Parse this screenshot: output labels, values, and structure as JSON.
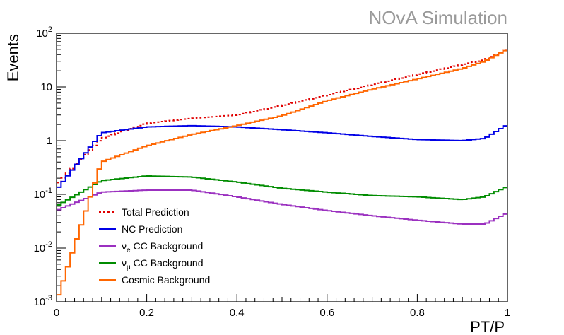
{
  "watermark": "NOvA Simulation",
  "chart_data": {
    "type": "line",
    "style": "step-histogram",
    "xlabel": "PT/P",
    "ylabel": "Events",
    "xlim": [
      0,
      1
    ],
    "ylim": [
      0.001,
      100
    ],
    "yscale": "log",
    "grid": false,
    "legend_position": "bottom-left",
    "x_ticks": [
      "0",
      "0.2",
      "0.4",
      "0.6",
      "0.8",
      "1"
    ],
    "y_ticks": [
      {
        "value": 0.001,
        "base": "10",
        "exp": "-3"
      },
      {
        "value": 0.01,
        "base": "10",
        "exp": "-2"
      },
      {
        "value": 0.1,
        "base": "10",
        "exp": "-1"
      },
      {
        "value": 1,
        "base": "1",
        "exp": ""
      },
      {
        "value": 10,
        "base": "10",
        "exp": ""
      },
      {
        "value": 100,
        "base": "10",
        "exp": "2"
      }
    ],
    "x": [
      0.0,
      0.1,
      0.2,
      0.3,
      0.4,
      0.5,
      0.6,
      0.7,
      0.8,
      0.9,
      0.95,
      1.0
    ],
    "series": [
      {
        "name": "Total Prediction",
        "color": "#e00000",
        "dash": true,
        "legend": {
          "text": "Total Prediction"
        },
        "values": [
          0.15,
          1.1,
          2.1,
          2.6,
          3.0,
          4.5,
          7.0,
          11.0,
          17.0,
          26.0,
          32.0,
          50.0
        ]
      },
      {
        "name": "NC Prediction",
        "color": "#0000e6",
        "legend": {
          "text": "NC Prediction"
        },
        "values": [
          0.12,
          1.4,
          1.8,
          1.9,
          1.8,
          1.6,
          1.4,
          1.2,
          1.05,
          1.0,
          1.1,
          2.0
        ]
      },
      {
        "name": "nu_e CC Background",
        "color": "#9b30c0",
        "legend": {
          "base": "ν",
          "sub": "e",
          "rest": " CC Background"
        },
        "values": [
          0.05,
          0.11,
          0.12,
          0.12,
          0.09,
          0.065,
          0.05,
          0.04,
          0.033,
          0.028,
          0.028,
          0.045
        ]
      },
      {
        "name": "nu_mu CC Background",
        "color": "#008c00",
        "legend": {
          "base": "ν",
          "sub": "μ",
          "rest": " CC Background"
        },
        "values": [
          0.06,
          0.18,
          0.22,
          0.21,
          0.17,
          0.13,
          0.11,
          0.095,
          0.09,
          0.08,
          0.09,
          0.14
        ]
      },
      {
        "name": "Cosmic Background",
        "color": "#ff6600",
        "legend": {
          "text": "Cosmic Background"
        },
        "values": [
          0.001,
          0.4,
          0.8,
          1.3,
          1.9,
          2.9,
          5.5,
          9.0,
          14.0,
          22.0,
          30.0,
          50.0
        ]
      }
    ]
  }
}
